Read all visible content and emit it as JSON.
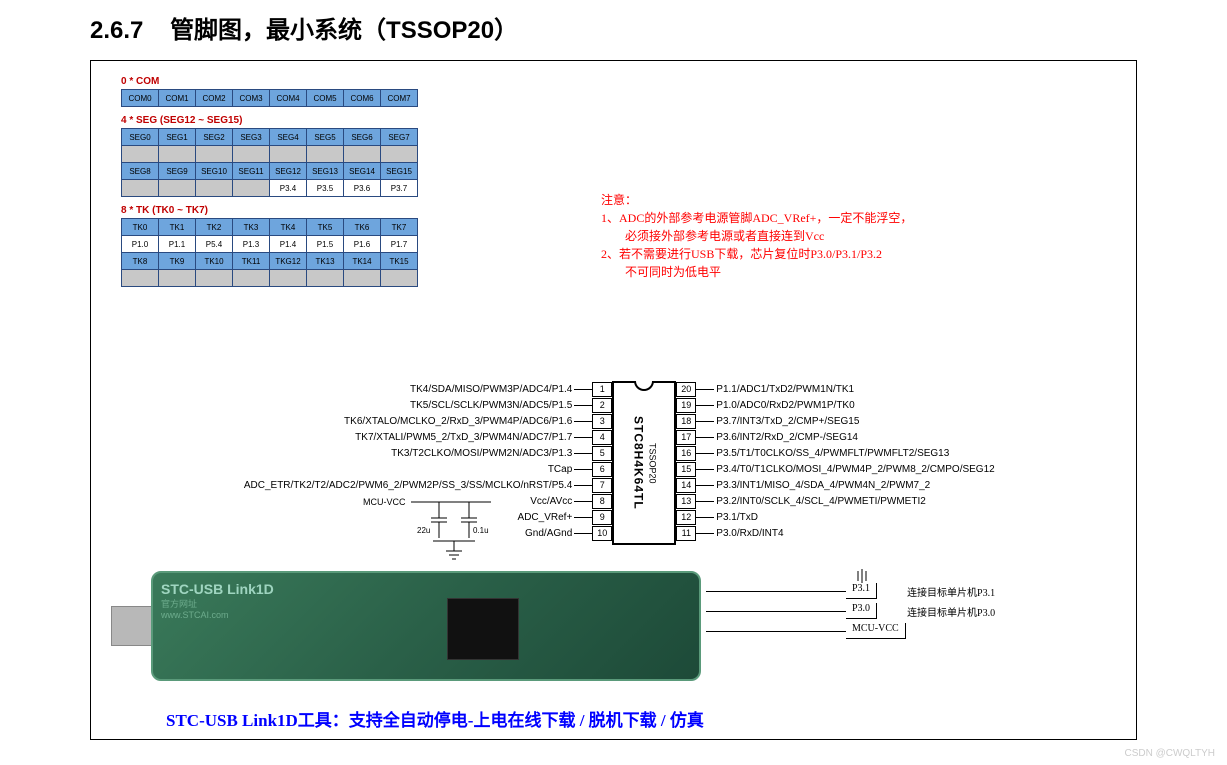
{
  "section": {
    "number": "2.6.7",
    "title": "管脚图，最小系统（TSSOP20）"
  },
  "tables": {
    "com": {
      "title": "0 * COM",
      "rows": [
        {
          "cls": "blue",
          "cells": [
            "COM0",
            "COM1",
            "COM2",
            "COM3",
            "COM4",
            "COM5",
            "COM6",
            "COM7"
          ]
        }
      ]
    },
    "seg": {
      "title": "4 * SEG (SEG12 ~ SEG15)",
      "rows": [
        {
          "cls": "blue",
          "cells": [
            "SEG0",
            "SEG1",
            "SEG2",
            "SEG3",
            "SEG4",
            "SEG5",
            "SEG6",
            "SEG7"
          ]
        },
        {
          "cls": "grey",
          "cells": [
            "",
            "",
            "",
            "",
            "",
            "",
            "",
            ""
          ]
        },
        {
          "cls": "blue",
          "cells": [
            "SEG8",
            "SEG9",
            "SEG10",
            "SEG11",
            "SEG12",
            "SEG13",
            "SEG14",
            "SEG15"
          ]
        },
        {
          "cls": "mixed",
          "cells": [
            "",
            "",
            "",
            "",
            "P3.4",
            "P3.5",
            "P3.6",
            "P3.7"
          ],
          "greycount": 4
        }
      ]
    },
    "tk": {
      "title": "8 * TK (TK0 ~ TK7)",
      "rows": [
        {
          "cls": "blue",
          "cells": [
            "TK0",
            "TK1",
            "TK2",
            "TK3",
            "TK4",
            "TK5",
            "TK6",
            "TK7"
          ]
        },
        {
          "cls": "white",
          "cells": [
            "P1.0",
            "P1.1",
            "P5.4",
            "P1.3",
            "P1.4",
            "P1.5",
            "P1.6",
            "P1.7"
          ]
        },
        {
          "cls": "blue",
          "cells": [
            "TK8",
            "TK9",
            "TK10",
            "TK11",
            "TKG12",
            "TK13",
            "TK14",
            "TK15"
          ]
        },
        {
          "cls": "grey",
          "cells": [
            "",
            "",
            "",
            "",
            "",
            "",
            "",
            ""
          ]
        }
      ]
    }
  },
  "notice": {
    "head": "注意：",
    "lines": [
      "1、ADC的外部参考电源管脚ADC_VRef+，一定不能浮空，",
      "　　必须接外部参考电源或者直接连到Vcc",
      "2、若不需要进行USB下载，芯片复位时P3.0/P3.1/P3.2",
      "　　不可同时为低电平"
    ]
  },
  "chip": {
    "name": "STC8H4K64TL",
    "package": "TSSOP20",
    "left": [
      {
        "n": "1",
        "f": "TK4/SDA/MISO/PWM3P/ADC4/P1.4"
      },
      {
        "n": "2",
        "f": "TK5/SCL/SCLK/PWM3N/ADC5/P1.5"
      },
      {
        "n": "3",
        "f": "TK6/XTALO/MCLKO_2/RxD_3/PWM4P/ADC6/P1.6"
      },
      {
        "n": "4",
        "f": "TK7/XTALI/PWM5_2/TxD_3/PWM4N/ADC7/P1.7"
      },
      {
        "n": "5",
        "f": "TK3/T2CLKO/MOSI/PWM2N/ADC3/P1.3"
      },
      {
        "n": "6",
        "f": "TCap"
      },
      {
        "n": "7",
        "f": "ADC_ETR/TK2/T2/ADC2/PWM6_2/PWM2P/SS_3/SS/MCLKO/nRST/P5.4"
      },
      {
        "n": "8",
        "f": "Vcc/AVcc"
      },
      {
        "n": "9",
        "f": "ADC_VRef+"
      },
      {
        "n": "10",
        "f": "Gnd/AGnd"
      }
    ],
    "right": [
      {
        "n": "20",
        "f": "P1.1/ADC1/TxD2/PWM1N/TK1"
      },
      {
        "n": "19",
        "f": "P1.0/ADC0/RxD2/PWM1P/TK0"
      },
      {
        "n": "18",
        "f": "P3.7/INT3/TxD_2/CMP+/SEG15"
      },
      {
        "n": "17",
        "f": "P3.6/INT2/RxD_2/CMP-/SEG14"
      },
      {
        "n": "16",
        "f": "P3.5/T1/T0CLKO/SS_4/PWMFLT/PWMFLT2/SEG13"
      },
      {
        "n": "15",
        "f": "P3.4/T0/T1CLKO/MOSI_4/PWM4P_2/PWM8_2/CMPO/SEG12"
      },
      {
        "n": "14",
        "f": "P3.3/INT1/MISO_4/SDA_4/PWM4N_2/PWM7_2"
      },
      {
        "n": "13",
        "f": "P3.2/INT0/SCLK_4/SCL_4/PWMETI/PWMETI2"
      },
      {
        "n": "12",
        "f": "P3.1/TxD"
      },
      {
        "n": "11",
        "f": "P3.0/RxD/INT4"
      }
    ]
  },
  "caps": {
    "mcu": "MCU-VCC",
    "c1": "22u",
    "c2": "0.1u"
  },
  "device": {
    "title": "STC-USB Link1D",
    "sub1": "官方网址",
    "sub2": "www.STCAI.com"
  },
  "conn": [
    {
      "pin": "P3.1",
      "desc": "连接目标单片机P3.1"
    },
    {
      "pin": "P3.0",
      "desc": "连接目标单片机P3.0"
    },
    {
      "pin": "MCU-VCC",
      "desc": ""
    }
  ],
  "bottom": "STC-USB Link1D工具：支持全自动停电-上电在线下载 / 脱机下载 / 仿真",
  "watermark": "CSDN @CWQLTYH"
}
